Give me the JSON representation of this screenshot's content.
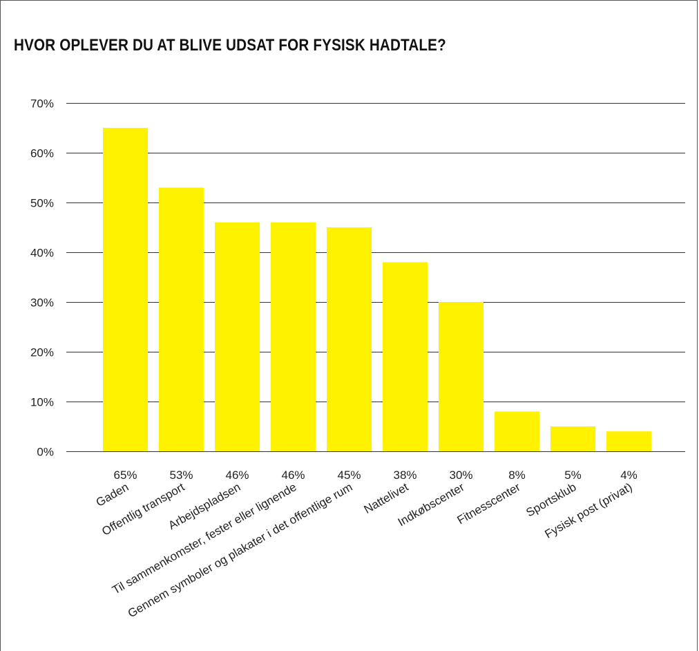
{
  "chart_data": {
    "type": "bar",
    "title": "HVOR OPLEVER DU AT BLIVE UDSAT FOR FYSISK HADTALE?",
    "categories": [
      "Gaden",
      "Offentlig transport",
      "Arbejdspladsen",
      "Til sammenkomster, fester eller lignende",
      "Gennem symboler og plakater i det offentlige rum",
      "Nattelivet",
      "Indkøbscenter",
      "Fitnesscenter",
      "Sportsklub",
      "Fysisk post (privat)"
    ],
    "values": [
      65,
      53,
      46,
      46,
      45,
      38,
      30,
      8,
      5,
      4
    ],
    "value_labels": [
      "65%",
      "53%",
      "46%",
      "46%",
      "45%",
      "38%",
      "30%",
      "8%",
      "5%",
      "4%"
    ],
    "y_ticks": [
      {
        "value": 0,
        "label": "0%"
      },
      {
        "value": 10,
        "label": "10%"
      },
      {
        "value": 20,
        "label": "20%"
      },
      {
        "value": 30,
        "label": "30%"
      },
      {
        "value": 40,
        "label": "40%"
      },
      {
        "value": 50,
        "label": "50%"
      },
      {
        "value": 60,
        "label": "60%"
      },
      {
        "value": 70,
        "label": "70%"
      }
    ],
    "ylim": [
      0,
      70
    ],
    "grid": true,
    "legend": false,
    "bar_color": "#FFF200",
    "gridline_color": "#333333"
  }
}
